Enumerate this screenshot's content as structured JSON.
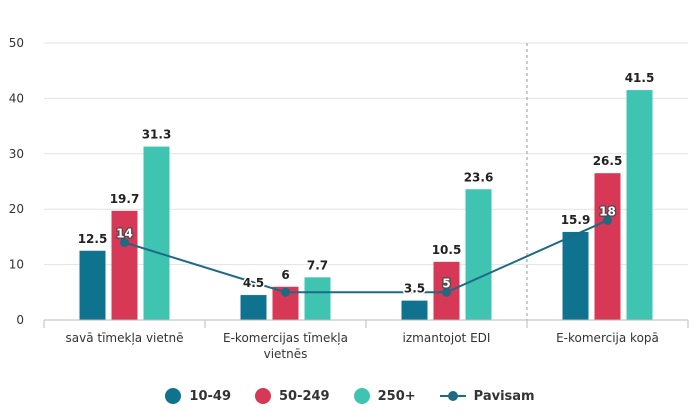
{
  "chart_data": {
    "type": "bar",
    "title": "",
    "xlabel": "",
    "ylabel": "",
    "ylim": [
      0,
      50
    ],
    "yticks": [
      0,
      10,
      20,
      30,
      40,
      50
    ],
    "grid": true,
    "legend_position": "bottom-center",
    "categories": [
      [
        "savā tīmekļa vietnē"
      ],
      [
        "E-komercijas tīmekļa",
        "vietnēs"
      ],
      [
        "izmantojot EDI"
      ],
      [
        "E-komercija kopā"
      ]
    ],
    "divider_after_category": 2,
    "series": [
      {
        "name": "10-49",
        "type": "bar",
        "color": "#0f7390",
        "values": [
          12.5,
          4.5,
          3.5,
          15.9
        ],
        "labels": [
          "12.5",
          "4.5",
          "3.5",
          "15.9"
        ]
      },
      {
        "name": "50-249",
        "type": "bar",
        "color": "#d63855",
        "values": [
          19.7,
          6,
          10.5,
          26.5
        ],
        "labels": [
          "19.7",
          "6",
          "10.5",
          "26.5"
        ]
      },
      {
        "name": "250+",
        "type": "bar",
        "color": "#3ec4b0",
        "values": [
          31.3,
          7.7,
          23.6,
          41.5
        ],
        "labels": [
          "31.3",
          "7.7",
          "23.6",
          "41.5"
        ]
      },
      {
        "name": "Pavisam",
        "type": "line",
        "color": "#1d6a85",
        "values": [
          14,
          5,
          5,
          18
        ],
        "labels": [
          "14",
          "",
          "5",
          "18"
        ]
      }
    ]
  }
}
